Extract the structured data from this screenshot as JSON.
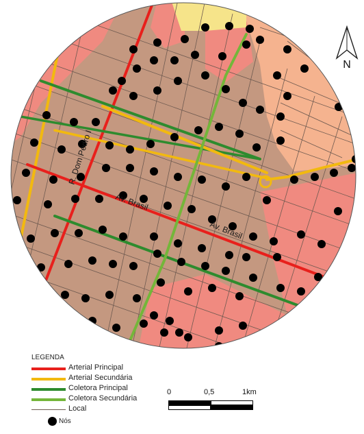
{
  "map": {
    "colors": {
      "outside": "#ffffff",
      "base": "#c49880",
      "urban_pink": "#f08a80",
      "urban_light": "#f5b38f",
      "yellow_zone": "#f6e48a",
      "block_line": "#6e5a50",
      "arterial_principal": "#e8201c",
      "arterial_secundaria": "#f2b90f",
      "coletora_principal": "#2e8b2e",
      "coletora_secundaria": "#74b63a",
      "node": "#000000"
    },
    "street_labels": {
      "dom_pedro": "R. Dom Pedro I",
      "brasil_1": "Av. Brasil",
      "brasil_2": "Av. Brasil"
    }
  },
  "legend": {
    "title": "LEGENDA",
    "items": [
      {
        "label": "Arterial Principal",
        "color": "#e8201c"
      },
      {
        "label": "Arterial Secundária",
        "color": "#f2b90f"
      },
      {
        "label": "Coletora Principal",
        "color": "#2e8b2e"
      },
      {
        "label": "Coletora Secundária",
        "color": "#74b63a"
      },
      {
        "label": "Local",
        "color": "#6e5a50"
      }
    ],
    "node_label": "Nós"
  },
  "scale": {
    "ticks": [
      "0",
      "0,5",
      "1km"
    ]
  },
  "north": {
    "letter": "N"
  }
}
